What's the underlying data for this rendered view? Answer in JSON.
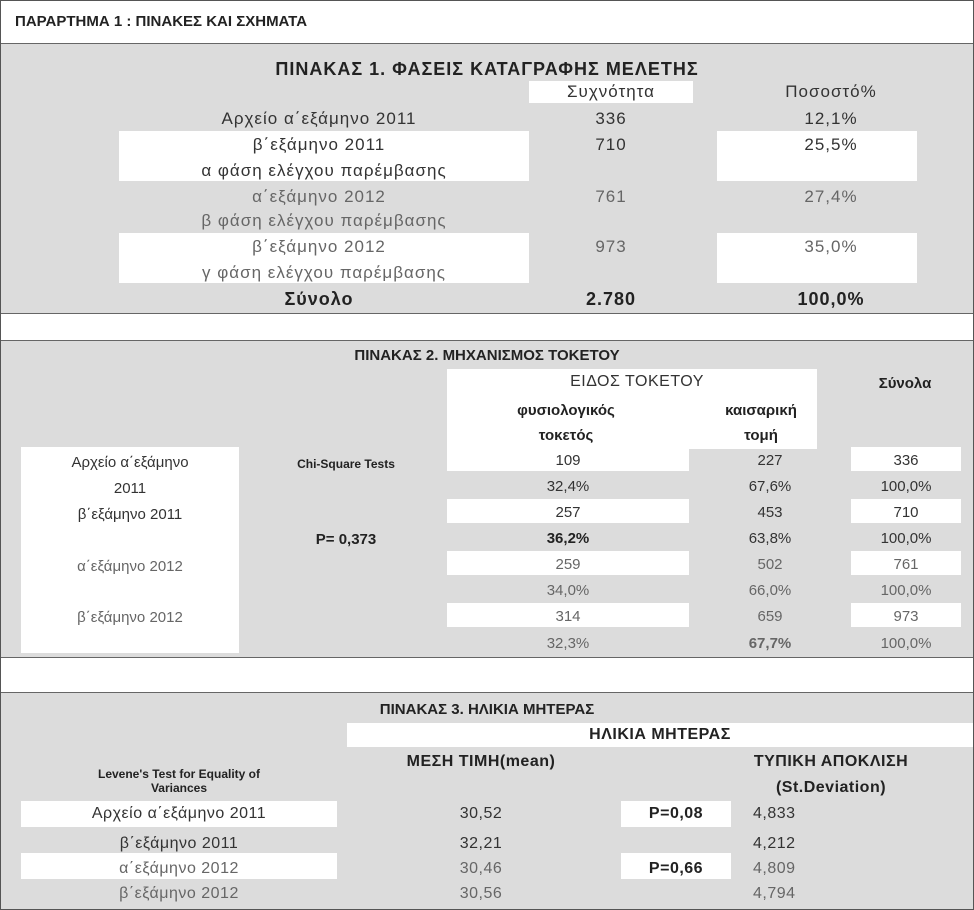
{
  "header": {
    "title": "ΠΑΡΑΡΤΗΜΑ 1 : ΠΙΝΑΚΕΣ ΚΑΙ ΣΧΗΜΑΤΑ"
  },
  "table1": {
    "title": "ΠΙΝΑΚΑΣ 1. ΦΑΣΕΙΣ ΚΑΤΑΓΡΑΦΗΣ ΜΕΛΕΤΗΣ",
    "col_freq": "Συχνότητα",
    "col_pct": "Ποσοστό%",
    "rows": [
      {
        "label": "Αρχείο α΄εξάμηνο 2011",
        "sub": "",
        "freq": "336",
        "pct": "12,1%"
      },
      {
        "label": "β΄εξάμηνο 2011",
        "sub": "α φάση ελέγχου παρέμβασης",
        "freq": "710",
        "pct": "25,5%"
      },
      {
        "label": "α΄εξάμηνο 2012",
        "sub": "β φάση ελέγχου παρέμβασης",
        "freq": "761",
        "pct": "27,4%"
      },
      {
        "label": "β΄εξάμηνο 2012",
        "sub": "γ φάση ελέγχου παρέμβασης",
        "freq": "973",
        "pct": "35,0%"
      }
    ],
    "total_label": "Σύνολο",
    "total_freq": "2.780",
    "total_pct": "100,0%"
  },
  "table2": {
    "title": "ΠΙΝΑΚΑΣ 2. ΜΗΧΑΝΙΣΜΟΣ ΤΟΚΕΤΟΥ",
    "group_header": "ΕΙΔΟΣ ΤΟΚΕΤΟΥ",
    "totals_header": "Σύνολα",
    "col_natural_1": "φυσιολογικός",
    "col_natural_2": "τοκετός",
    "col_caesarean_1": "καισαρική",
    "col_caesarean_2": "τομή",
    "test_label": "Chi-Square Tests",
    "p_value": "P= 0,373",
    "row_labels": [
      "Αρχείο α΄εξάμηνο",
      "2011",
      "β΄εξάμηνο 2011",
      "α΄εξάμηνο 2012",
      "β΄εξάμηνο 2012"
    ],
    "rows": [
      {
        "natural": "109",
        "caesarean": "227",
        "total": "336"
      },
      {
        "natural": "32,4%",
        "caesarean": "67,6%",
        "total": "100,0%"
      },
      {
        "natural": "257",
        "caesarean": "453",
        "total": "710"
      },
      {
        "natural": "36,2%",
        "caesarean": "63,8%",
        "total": "100,0%"
      },
      {
        "natural": "259",
        "caesarean": "502",
        "total": "761"
      },
      {
        "natural": "34,0%",
        "caesarean": "66,0%",
        "total": "100,0%"
      },
      {
        "natural": "314",
        "caesarean": "659",
        "total": "973"
      },
      {
        "natural": "32,3%",
        "caesarean": "67,7%",
        "total": "100,0%"
      }
    ]
  },
  "table3": {
    "title": "ΠΙΝΑΚΑΣ 3. ΗΛΙΚΙΑ ΜΗΤΕΡΑΣ",
    "group_header": "ΗΛΙΚΙΑ ΜΗΤΕΡΑΣ",
    "col_mean": "ΜΕΣΗ ΤΙΜΗ(mean)",
    "col_sd_1": "ΤΥΠΙΚΗ ΑΠΟΚΛΙΣΗ",
    "col_sd_2": "(St.Deviation)",
    "test_label_1": "Levene's Test for Equality of",
    "test_label_2": "Variances",
    "rows": [
      {
        "label": "Αρχείο α΄εξάμηνο 2011",
        "mean": "30,52",
        "p": "P=0,08",
        "sd": "4,833"
      },
      {
        "label": "β΄εξάμηνο 2011",
        "mean": "32,21",
        "p": "",
        "sd": "4,212"
      },
      {
        "label": "α΄εξάμηνο 2012",
        "mean": "30,46",
        "p": "P=0,66",
        "sd": "4,809"
      },
      {
        "label": "β΄εξάμηνο 2012",
        "mean": "30,56",
        "p": "",
        "sd": "4,794"
      }
    ]
  }
}
